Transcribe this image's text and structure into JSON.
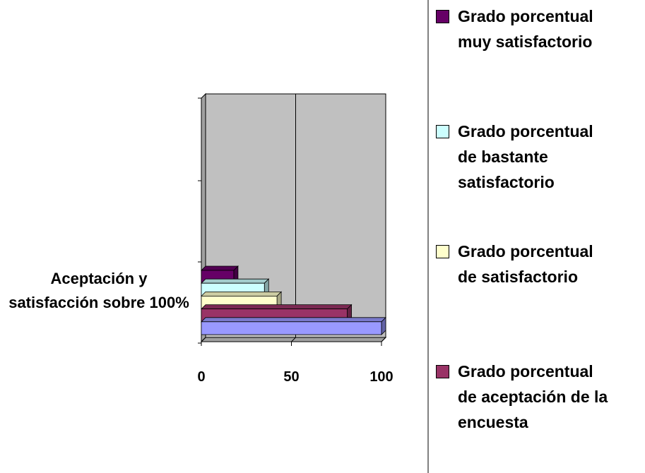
{
  "chart_data": {
    "type": "bar3d_horizontal",
    "categories": [
      "Aceptación y satisfacción sobre 100%"
    ],
    "series": [
      {
        "name": "Grado porcentual muy satisfactorio",
        "color": "#660066",
        "values": [
          18
        ]
      },
      {
        "name": "Grado porcentual de bastante satisfactorio",
        "color": "#ccffff",
        "values": [
          35
        ]
      },
      {
        "name": "Grado porcentual de satisfactorio",
        "color": "#ffffcc",
        "values": [
          42
        ]
      },
      {
        "name": "Grado porcentual de aceptación de la encuesta",
        "color": "#993366",
        "values": [
          81
        ]
      },
      {
        "color": "#9999ff",
        "values": [
          100
        ]
      }
    ],
    "xlim": [
      0,
      100
    ],
    "xticks": [
      0,
      50,
      100
    ],
    "grid": true
  }
}
